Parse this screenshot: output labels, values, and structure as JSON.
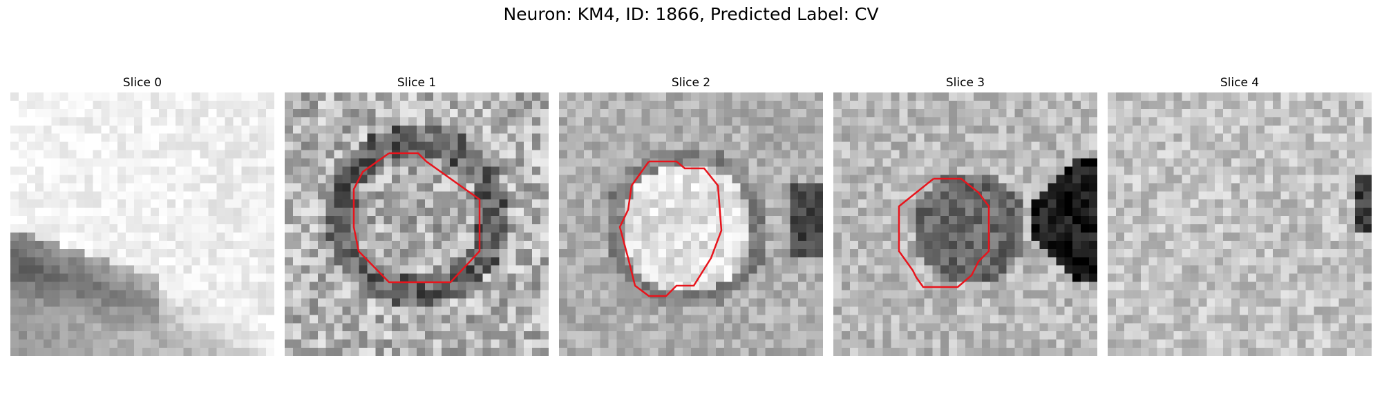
{
  "figure": {
    "title": "Neuron: KM4, ID: 1866, Predicted Label: CV"
  },
  "panels": [
    {
      "title": "Slice 0",
      "pattern": "bright-with-dark-band",
      "contour": null
    },
    {
      "title": "Slice 1",
      "pattern": "ring",
      "contour": "octagon-large"
    },
    {
      "title": "Slice 2",
      "pattern": "bright-disk",
      "contour": "circle"
    },
    {
      "title": "Slice 3",
      "pattern": "dark-blob",
      "contour": "octagon-small"
    },
    {
      "title": "Slice 4",
      "pattern": "noise",
      "contour": null
    }
  ],
  "colors": {
    "contour": "#e8141c"
  }
}
